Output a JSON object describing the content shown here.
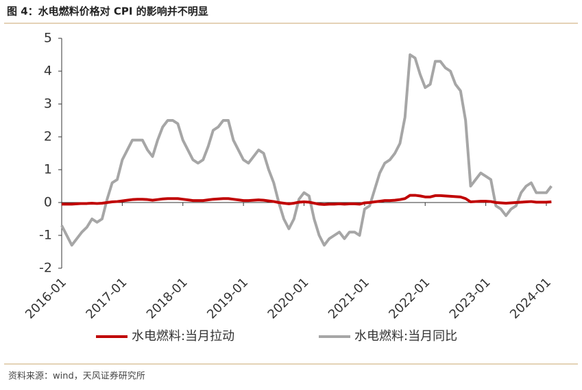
{
  "chart_data": {
    "type": "line",
    "title": "图 4：水电燃料价格对 CPI 的影响并不明显",
    "source": "资料来源：wind，天风证券研究所",
    "categories": [
      "2016-01",
      null,
      null,
      null,
      null,
      null,
      null,
      null,
      null,
      null,
      null,
      null,
      "2017-01",
      null,
      null,
      null,
      null,
      null,
      null,
      null,
      null,
      null,
      null,
      null,
      "2018-01",
      null,
      null,
      null,
      null,
      null,
      null,
      null,
      null,
      null,
      null,
      null,
      "2019-01",
      null,
      null,
      null,
      null,
      null,
      null,
      null,
      null,
      null,
      null,
      null,
      "2020-01",
      null,
      null,
      null,
      null,
      null,
      null,
      null,
      null,
      null,
      null,
      null,
      "2021-01",
      null,
      null,
      null,
      null,
      null,
      null,
      null,
      null,
      null,
      null,
      null,
      "2022-01",
      null,
      null,
      null,
      null,
      null,
      null,
      null,
      null,
      null,
      null,
      null,
      "2023-01",
      null,
      null,
      null,
      null,
      null,
      null,
      null,
      null,
      null,
      null,
      null,
      "2024-01",
      null
    ],
    "series": [
      {
        "name": "水电燃料:当月拉动",
        "color": "#c00000",
        "width": 4,
        "values": [
          -0.05,
          -0.05,
          -0.05,
          -0.04,
          -0.03,
          -0.03,
          -0.02,
          -0.03,
          -0.02,
          0,
          0.02,
          0.03,
          0.05,
          0.07,
          0.09,
          0.1,
          0.1,
          0.09,
          0.07,
          0.09,
          0.11,
          0.12,
          0.12,
          0.12,
          0.1,
          0.08,
          0.06,
          0.06,
          0.06,
          0.08,
          0.1,
          0.11,
          0.12,
          0.12,
          0.1,
          0.08,
          0.06,
          0.06,
          0.07,
          0.08,
          0.07,
          0.05,
          0.03,
          0,
          -0.02,
          -0.04,
          -0.02,
          0.01,
          0.02,
          0.01,
          -0.02,
          -0.05,
          -0.06,
          -0.05,
          -0.05,
          -0.04,
          -0.05,
          -0.04,
          -0.04,
          -0.05,
          -0.01,
          0,
          0.02,
          0.04,
          0.06,
          0.06,
          0.07,
          0.09,
          0.12,
          0.22,
          0.22,
          0.2,
          0.17,
          0.17,
          0.21,
          0.21,
          0.2,
          0.19,
          0.18,
          0.17,
          0.12,
          0.02,
          0.03,
          0.04,
          0.04,
          0.03,
          0,
          -0.01,
          -0.02,
          -0.01,
          0,
          0.01,
          0.02,
          0.03,
          0.01,
          0.01,
          0.01,
          0.02
        ]
      },
      {
        "name": "水电燃料:当月同比",
        "color": "#a6a6a6",
        "width": 4,
        "values": [
          -0.7,
          -1.0,
          -1.3,
          -1.1,
          -0.9,
          -0.75,
          -0.5,
          -0.6,
          -0.5,
          0.1,
          0.6,
          0.7,
          1.3,
          1.6,
          1.9,
          1.9,
          1.9,
          1.6,
          1.4,
          1.9,
          2.3,
          2.5,
          2.5,
          2.4,
          1.9,
          1.6,
          1.3,
          1.2,
          1.3,
          1.7,
          2.2,
          2.3,
          2.5,
          2.5,
          1.9,
          1.6,
          1.3,
          1.2,
          1.4,
          1.6,
          1.5,
          1.0,
          0.6,
          0.0,
          -0.5,
          -0.8,
          -0.5,
          0.1,
          0.3,
          0.2,
          -0.5,
          -1.0,
          -1.3,
          -1.1,
          -1.0,
          -0.9,
          -1.1,
          -0.9,
          -0.9,
          -1.0,
          -0.2,
          -0.1,
          0.4,
          0.9,
          1.2,
          1.3,
          1.5,
          1.8,
          2.6,
          4.5,
          4.4,
          3.9,
          3.5,
          3.6,
          4.3,
          4.3,
          4.1,
          4.0,
          3.6,
          3.4,
          2.5,
          0.5,
          0.7,
          0.9,
          0.8,
          0.7,
          -0.1,
          -0.2,
          -0.4,
          -0.2,
          -0.1,
          0.3,
          0.5,
          0.6,
          0.3,
          0.3,
          0.3,
          0.5
        ]
      }
    ],
    "ylim": [
      -2,
      5
    ],
    "yticks": [
      -2,
      -1,
      0,
      1,
      2,
      3,
      4,
      5
    ],
    "grid": false
  }
}
